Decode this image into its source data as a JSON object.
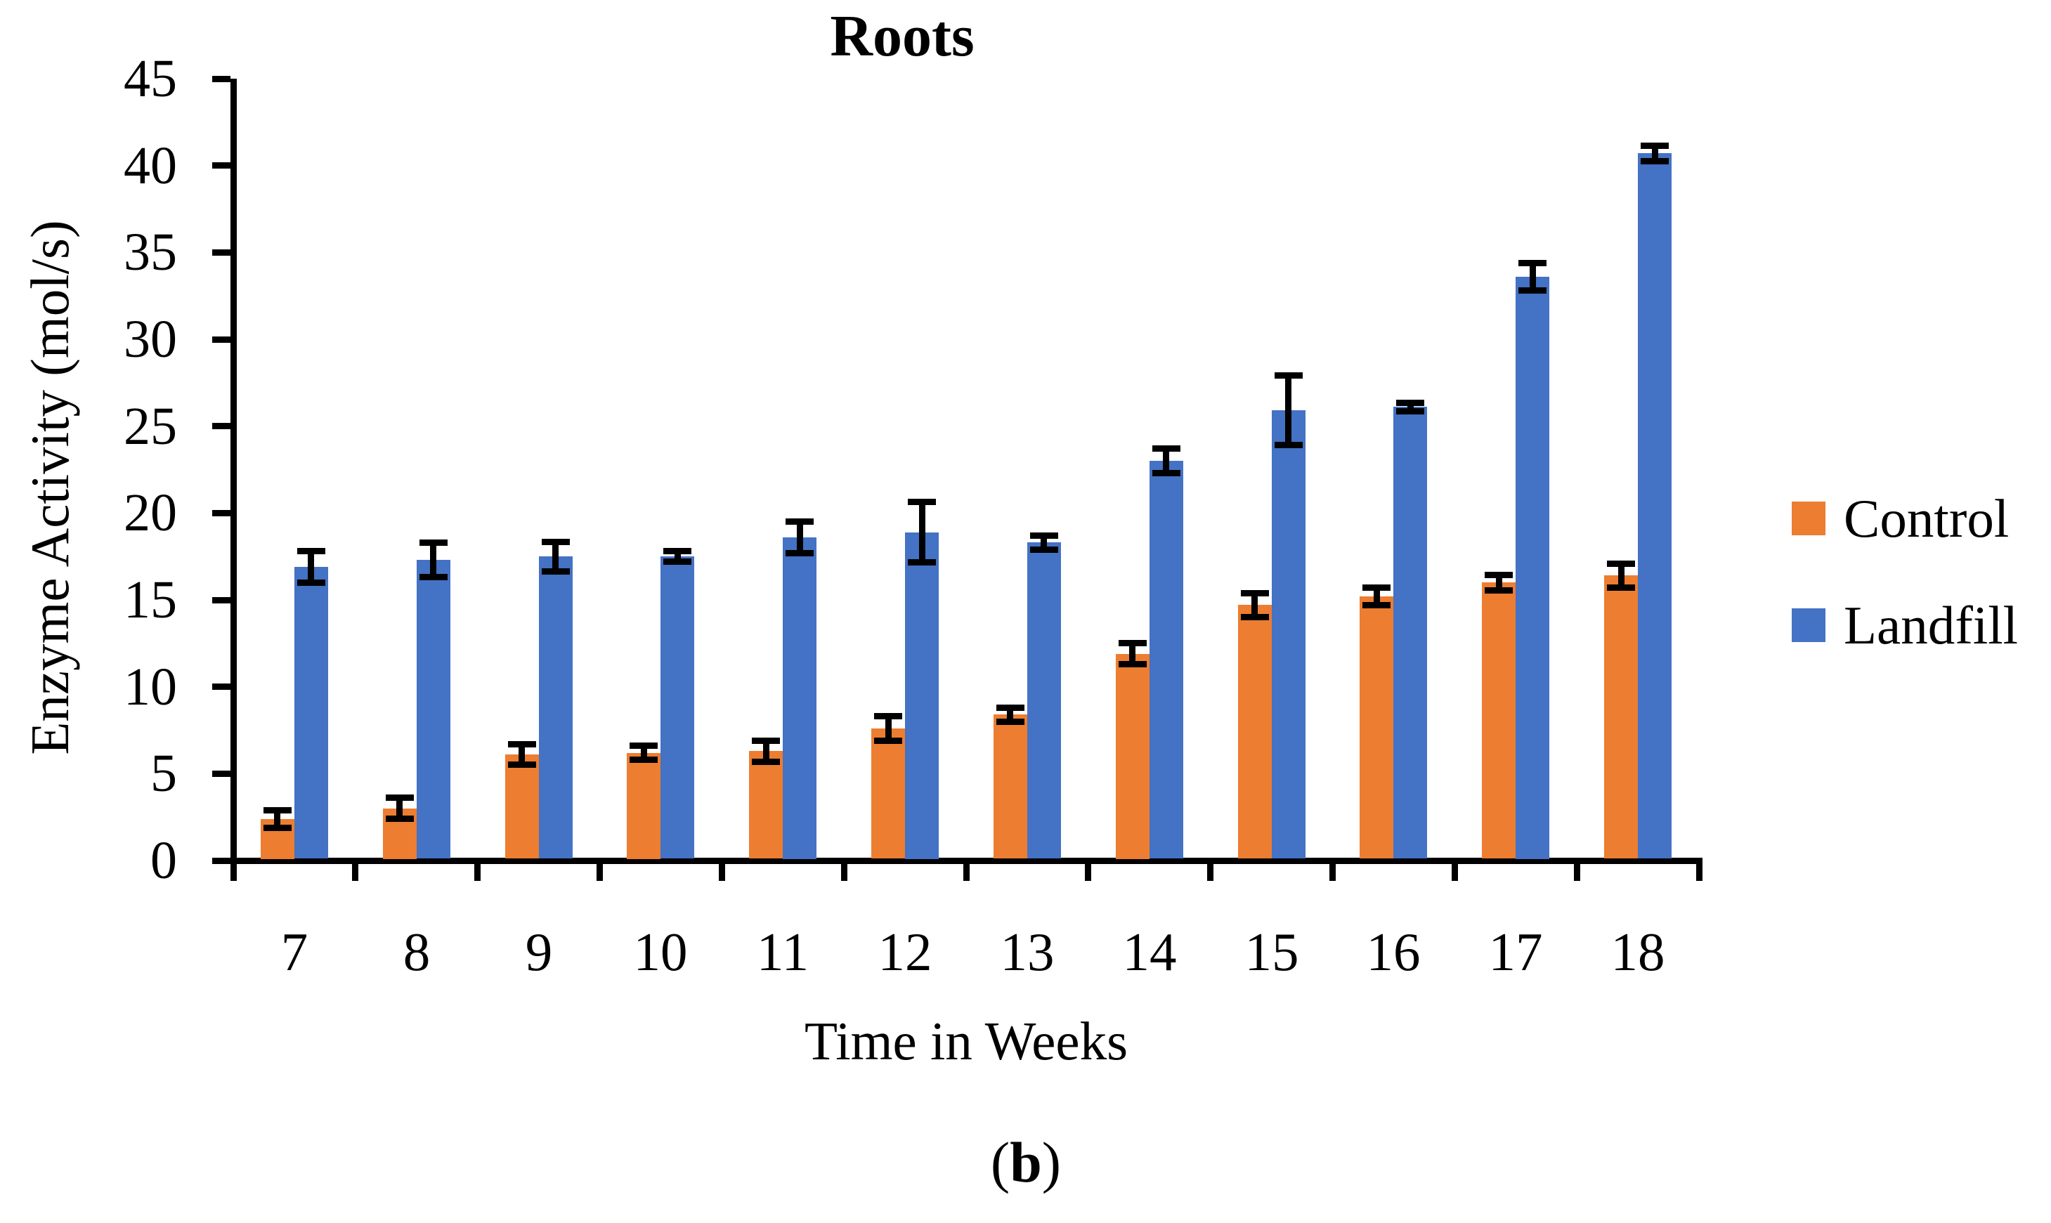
{
  "figure": {
    "caption": {
      "open": "(",
      "letter": "b",
      "close": ")"
    }
  },
  "chart_data": {
    "type": "bar",
    "title": "Roots",
    "xlabel": "Time in Weeks",
    "ylabel": "Enzyme Activity (mol/s)",
    "ylim": [
      0,
      45
    ],
    "ytick_step": 5,
    "yticks": [
      0,
      5,
      10,
      15,
      20,
      25,
      30,
      35,
      40,
      45
    ],
    "grid": false,
    "legend_position": "right",
    "error_bars": true,
    "categories": [
      "7",
      "8",
      "9",
      "10",
      "11",
      "12",
      "13",
      "14",
      "15",
      "16",
      "17",
      "18"
    ],
    "series": [
      {
        "name": "Control",
        "color": "#ED7D31",
        "values": [
          2.4,
          3.0,
          6.1,
          6.2,
          6.3,
          7.6,
          8.4,
          11.9,
          14.7,
          15.2,
          16.0,
          16.4
        ],
        "errors": [
          0.5,
          0.6,
          0.6,
          0.4,
          0.6,
          0.7,
          0.4,
          0.6,
          0.7,
          0.5,
          0.45,
          0.7
        ]
      },
      {
        "name": "Landfill",
        "color": "#4472C4",
        "values": [
          16.9,
          17.3,
          17.5,
          17.5,
          18.6,
          18.9,
          18.3,
          23.0,
          25.9,
          26.1,
          33.6,
          40.7
        ],
        "errors": [
          0.9,
          1.0,
          0.85,
          0.3,
          0.9,
          1.75,
          0.4,
          0.7,
          2.0,
          0.25,
          0.8,
          0.45
        ]
      }
    ],
    "axis_color": "#000000",
    "error_bar_color": "#000000"
  }
}
